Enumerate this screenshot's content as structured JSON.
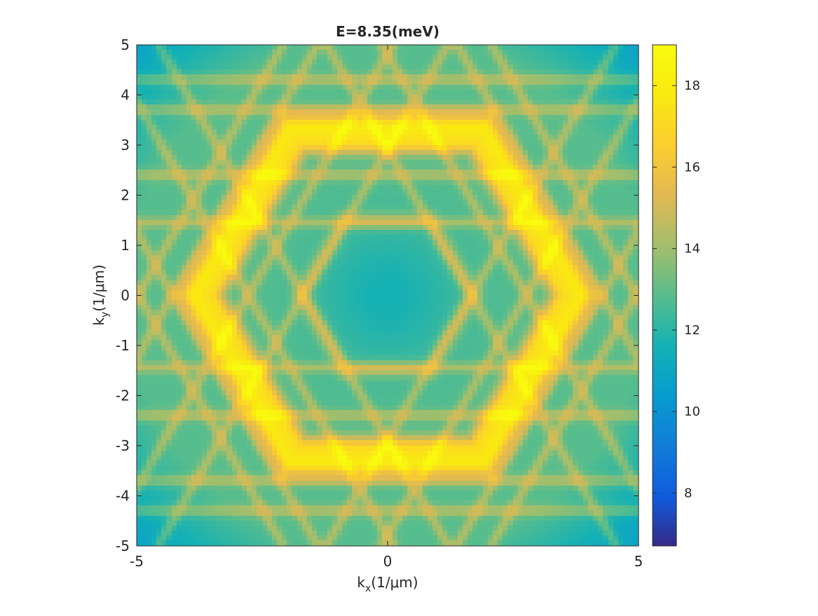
{
  "chart_data": {
    "type": "heatmap",
    "title": "E=8.35(meV)",
    "xlabel": {
      "base": "k",
      "sub": "x",
      "rest": "(1/μm)"
    },
    "ylabel": {
      "base": "k",
      "sub": "y",
      "rest": "(1/μm)"
    },
    "xlim": [
      -5,
      5
    ],
    "ylim": [
      -5,
      5
    ],
    "xticks": [
      -5,
      0,
      5
    ],
    "xtick_labels": [
      "-5",
      "0",
      "5"
    ],
    "yticks": [
      -5,
      -4,
      -3,
      -2,
      -1,
      0,
      1,
      2,
      3,
      4,
      5
    ],
    "ytick_labels": [
      "-5",
      "-4",
      "-3",
      "-2",
      "-1",
      "0",
      "1",
      "2",
      "3",
      "4",
      "5"
    ],
    "colorbar": {
      "clim": [
        6.7,
        19.0
      ],
      "ticks": [
        8,
        10,
        12,
        14,
        16,
        18
      ],
      "tick_labels": [
        "8",
        "10",
        "12",
        "14",
        "16",
        "18"
      ],
      "colormap": "parula"
    },
    "grid": false,
    "description_of_pattern": {
      "background_level": 12.8,
      "center_level": 11.6,
      "corner_level": 10.0,
      "primary_ring": {
        "shape": "hexagon",
        "vertex_radius": 3.9,
        "orientation": "vertices-on-x-axis",
        "peak_level": 18.0
      },
      "secondary_lines_level": 14.8
    }
  }
}
